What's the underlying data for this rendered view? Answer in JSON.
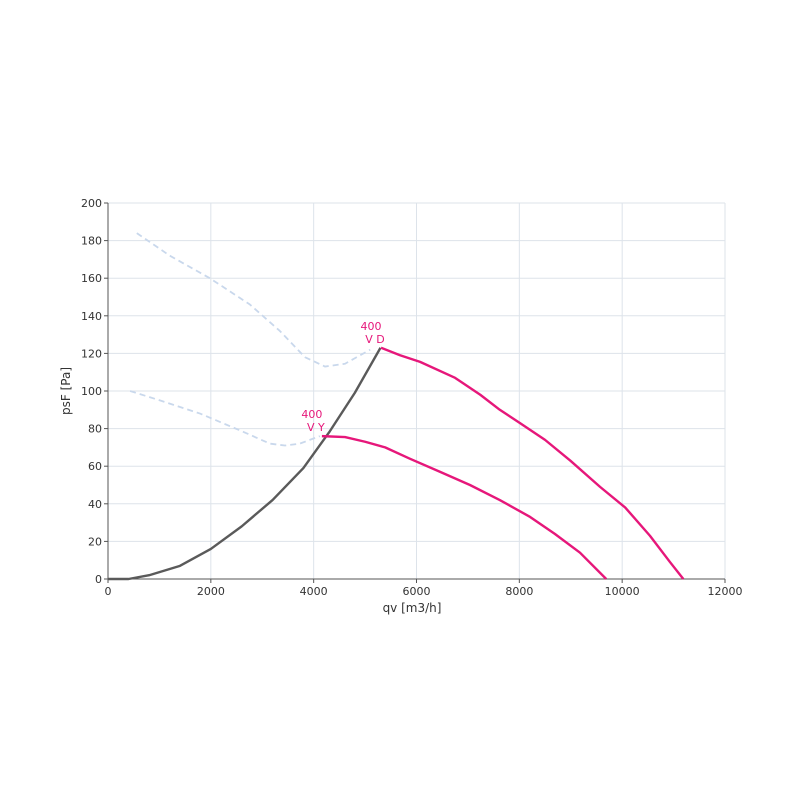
{
  "chart_data": {
    "type": "line",
    "x_label": "qv [m3/h]",
    "y_label": "psF [Pa]",
    "xlim": [
      0,
      12000
    ],
    "xticks": [
      0,
      2000,
      4000,
      6000,
      8000,
      10000,
      12000
    ],
    "ylim": [
      0,
      200
    ],
    "yticks": [
      0,
      20,
      40,
      60,
      80,
      100,
      120,
      140,
      160,
      180,
      200
    ],
    "grid": true,
    "series": [
      {
        "color": "#c9d8ec",
        "style": "dashed",
        "x": [
          560,
          1200,
          1980,
          2760,
          3340,
          3830,
          4220,
          4610,
          5100
        ],
        "values": [
          184,
          172,
          160,
          146,
          132,
          118,
          113,
          114.5,
          122
        ]
      },
      {
        "color": "#c9d8ec",
        "style": "dashed",
        "x": [
          430,
          1010,
          1790,
          2570,
          3150,
          3440,
          3730,
          4120
        ],
        "values": [
          100,
          95,
          88,
          79,
          72,
          71,
          72,
          76
        ]
      },
      {
        "color": "#5a5a5a",
        "style": "solid",
        "x": [
          0,
          400,
          800,
          1400,
          2000,
          2600,
          3200,
          3800,
          4300,
          4800,
          5300
        ],
        "values": [
          0,
          0,
          2,
          7,
          16,
          28,
          42,
          59,
          78,
          99,
          123
        ]
      },
      {
        "color": "#e6177a",
        "style": "solid",
        "label": "400",
        "sublabel": "V D",
        "x": [
          5310,
          5680,
          6070,
          6750,
          7240,
          7620,
          8010,
          8500,
          8990,
          9570,
          10060,
          10540,
          10930,
          11190
        ],
        "values": [
          123,
          119,
          115.5,
          107,
          98,
          90,
          83,
          74,
          63,
          49,
          38,
          23,
          9,
          0
        ]
      },
      {
        "color": "#e6177a",
        "style": "solid",
        "label": "400",
        "sublabel": "V Y",
        "x": [
          4160,
          4610,
          5000,
          5390,
          5870,
          6460,
          7040,
          7620,
          8210,
          8690,
          9180,
          9690
        ],
        "values": [
          76,
          75.5,
          73,
          70,
          64,
          57,
          50,
          42,
          33,
          24,
          14,
          0
        ]
      }
    ]
  }
}
